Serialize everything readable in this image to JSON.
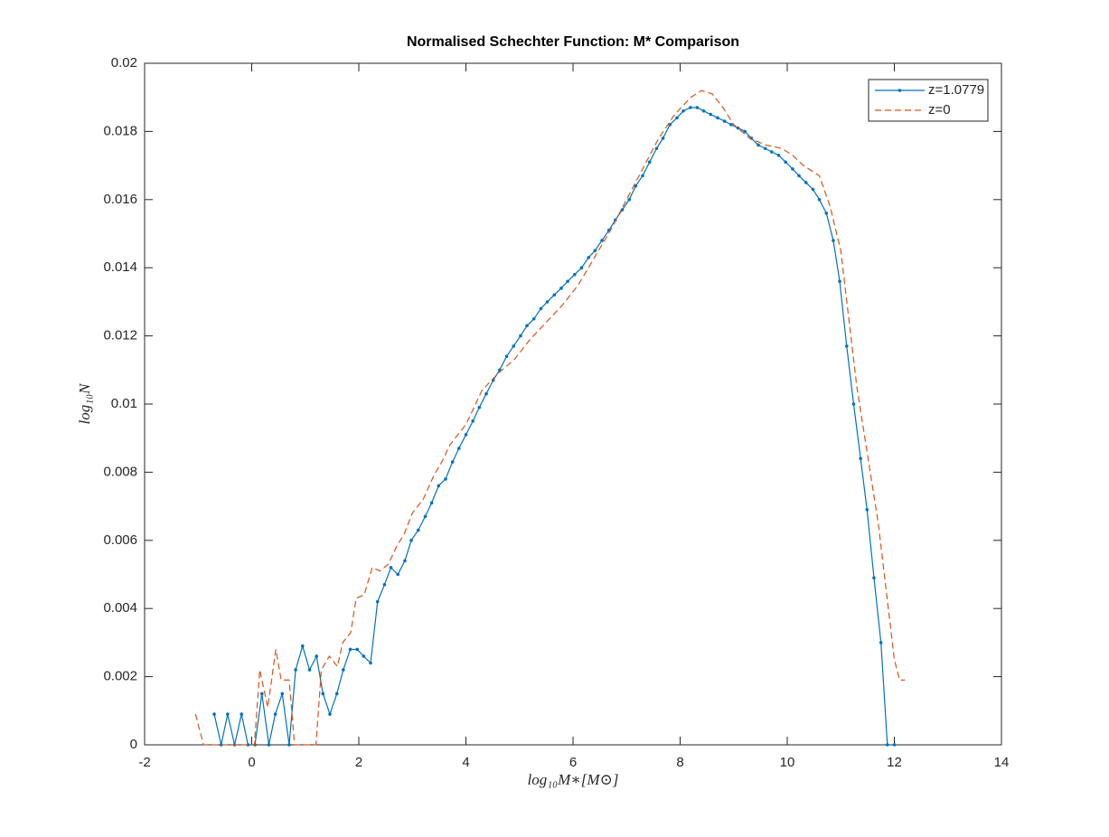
{
  "chart_data": {
    "type": "line",
    "title": "Normalised Schechter Function: M* Comparison",
    "x_label": "log₁₀M∗[M⊙]",
    "y_label": "log₁₀N",
    "xlim": [
      -2,
      14
    ],
    "ylim": [
      0,
      0.02
    ],
    "xticks": [
      -2,
      0,
      2,
      4,
      6,
      8,
      10,
      12,
      14
    ],
    "yticks": [
      0,
      0.002,
      0.004,
      0.006,
      0.008,
      0.01,
      0.012,
      0.014,
      0.016,
      0.018,
      0.02
    ],
    "legend": "northeast",
    "series": [
      {
        "name": "z=1.0779",
        "color": "#0072bd",
        "style": "solid",
        "markers": true,
        "x": [
          -0.7,
          -0.57,
          -0.45,
          -0.32,
          -0.19,
          -0.07,
          0.06,
          0.19,
          0.32,
          0.44,
          0.57,
          0.7,
          0.82,
          0.95,
          1.08,
          1.21,
          1.33,
          1.46,
          1.59,
          1.71,
          1.84,
          1.97,
          2.09,
          2.22,
          2.35,
          2.48,
          2.6,
          2.73,
          2.86,
          2.98,
          3.11,
          3.24,
          3.36,
          3.49,
          3.62,
          3.75,
          3.87,
          4.0,
          4.13,
          4.25,
          4.38,
          4.51,
          4.63,
          4.76,
          4.89,
          5.02,
          5.14,
          5.27,
          5.4,
          5.52,
          5.65,
          5.78,
          5.9,
          6.03,
          6.16,
          6.29,
          6.41,
          6.54,
          6.67,
          6.79,
          6.92,
          7.05,
          7.17,
          7.3,
          7.43,
          7.56,
          7.68,
          7.81,
          7.94,
          8.06,
          8.19,
          8.32,
          8.44,
          8.57,
          8.7,
          8.83,
          8.95,
          9.08,
          9.21,
          9.33,
          9.46,
          9.59,
          9.71,
          9.84,
          9.97,
          10.1,
          10.22,
          10.35,
          10.48,
          10.6,
          10.73,
          10.86,
          10.98,
          11.11,
          11.24,
          11.37,
          11.49,
          11.62,
          11.75,
          11.87,
          12.0
        ],
        "values": [
          0.0009,
          0,
          0.0009,
          0,
          0.0009,
          0,
          0,
          0.0015,
          0,
          0.0009,
          0.0015,
          0,
          0.0022,
          0.0029,
          0.0022,
          0.0026,
          0.0015,
          0.0009,
          0.0015,
          0.0022,
          0.0028,
          0.0028,
          0.0026,
          0.0024,
          0.0042,
          0.0047,
          0.0052,
          0.005,
          0.0054,
          0.006,
          0.0063,
          0.0067,
          0.0071,
          0.0076,
          0.0078,
          0.0083,
          0.0087,
          0.0091,
          0.0095,
          0.0099,
          0.0103,
          0.0107,
          0.011,
          0.0114,
          0.0117,
          0.012,
          0.0123,
          0.0125,
          0.0128,
          0.013,
          0.0132,
          0.0134,
          0.0136,
          0.0138,
          0.014,
          0.0143,
          0.0145,
          0.0148,
          0.0151,
          0.0154,
          0.0157,
          0.016,
          0.0164,
          0.0167,
          0.0171,
          0.0175,
          0.0178,
          0.0182,
          0.0184,
          0.0186,
          0.0187,
          0.0187,
          0.0186,
          0.0185,
          0.0184,
          0.0183,
          0.0182,
          0.0181,
          0.018,
          0.0178,
          0.0176,
          0.0175,
          0.0174,
          0.0173,
          0.0171,
          0.0169,
          0.0167,
          0.0165,
          0.0163,
          0.016,
          0.0156,
          0.0148,
          0.0136,
          0.0117,
          0.01,
          0.0084,
          0.0069,
          0.0049,
          0.003,
          0,
          0
        ]
      },
      {
        "name": "z=0",
        "color": "#d95319",
        "style": "dashed",
        "markers": false,
        "x": [
          -1.05,
          -0.9,
          -0.5,
          0,
          0.05,
          0.15,
          0.3,
          0.45,
          0.55,
          0.7,
          0.8,
          1.2,
          1.3,
          1.45,
          1.6,
          1.7,
          1.85,
          1.95,
          2.1,
          2.25,
          2.4,
          2.55,
          2.7,
          2.85,
          3.0,
          3.2,
          3.4,
          3.55,
          3.7,
          4.0,
          4.3,
          4.6,
          4.9,
          5.2,
          5.5,
          5.8,
          6.1,
          6.4,
          6.7,
          7.0,
          7.3,
          7.6,
          7.9,
          8.2,
          8.4,
          8.6,
          8.8,
          9.0,
          9.3,
          9.6,
          9.9,
          10.1,
          10.3,
          10.6,
          10.8,
          11.0,
          11.15,
          11.3,
          11.5,
          11.7,
          11.85,
          12.0,
          12.1,
          12.2
        ],
        "values": [
          0.0009,
          0,
          0,
          0,
          0,
          0.0022,
          0.0011,
          0.0028,
          0.0019,
          0.0019,
          0,
          0,
          0.0022,
          0.0026,
          0.0023,
          0.003,
          0.0033,
          0.0043,
          0.0044,
          0.0052,
          0.0051,
          0.0053,
          0.0058,
          0.0062,
          0.0068,
          0.0072,
          0.0079,
          0.0083,
          0.0088,
          0.0094,
          0.0104,
          0.0109,
          0.0113,
          0.0119,
          0.0124,
          0.0129,
          0.0135,
          0.0143,
          0.0151,
          0.016,
          0.0169,
          0.0178,
          0.0185,
          0.019,
          0.0192,
          0.0191,
          0.0187,
          0.0182,
          0.0178,
          0.0176,
          0.0175,
          0.0173,
          0.017,
          0.0167,
          0.0158,
          0.0145,
          0.0125,
          0.0105,
          0.0085,
          0.0065,
          0.0045,
          0.0025,
          0.0019,
          0.0019
        ]
      }
    ]
  }
}
